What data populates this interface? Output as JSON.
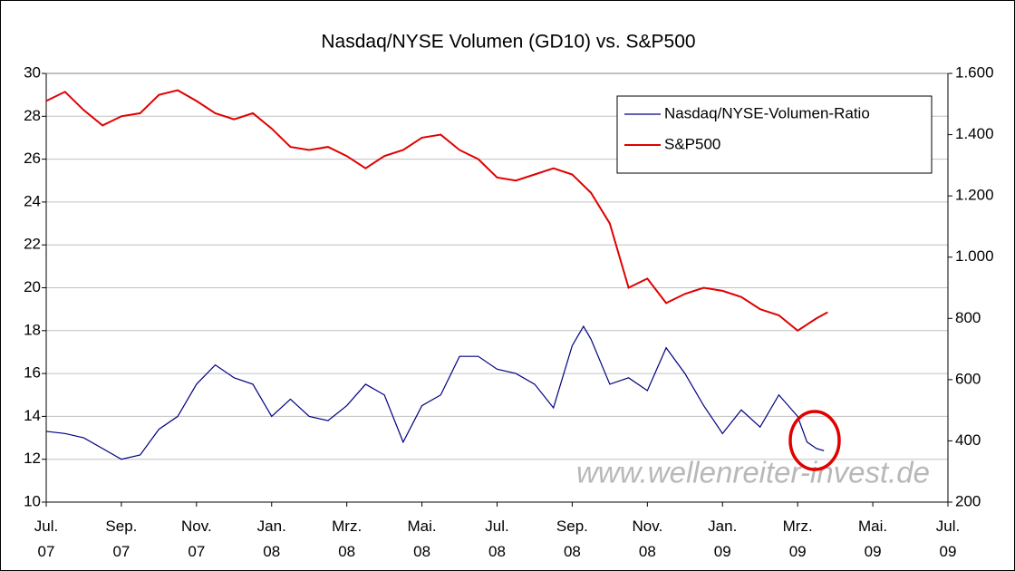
{
  "chart_data": {
    "type": "line",
    "title": "Nasdaq/NYSE Volumen (GD10) vs. S&P500",
    "watermark": "www.wellenreiter-invest.de",
    "xlim": [
      0,
      24
    ],
    "xticks": [
      {
        "value": 0,
        "label": "Jul.\n07"
      },
      {
        "value": 2,
        "label": "Sep.\n07"
      },
      {
        "value": 4,
        "label": "Nov.\n07"
      },
      {
        "value": 6,
        "label": "Jan.\n08"
      },
      {
        "value": 8,
        "label": "Mrz.\n08"
      },
      {
        "value": 10,
        "label": "Mai.\n08"
      },
      {
        "value": 12,
        "label": "Jul.\n08"
      },
      {
        "value": 14,
        "label": "Sep.\n08"
      },
      {
        "value": 16,
        "label": "Nov.\n08"
      },
      {
        "value": 18,
        "label": "Jan.\n09"
      },
      {
        "value": 20,
        "label": "Mrz.\n09"
      },
      {
        "value": 22,
        "label": "Mai.\n09"
      },
      {
        "value": 24,
        "label": "Jul.\n09"
      }
    ],
    "ylim": [
      10,
      30
    ],
    "yticks": [
      10,
      12,
      14,
      16,
      18,
      20,
      22,
      24,
      26,
      28,
      30
    ],
    "y2lim": [
      200,
      1600
    ],
    "y2ticks": [
      200,
      400,
      600,
      800,
      {
        "value": 1000,
        "label": "1.000"
      },
      {
        "value": 1200,
        "label": "1.200"
      },
      {
        "value": 1400,
        "label": "1.400"
      },
      {
        "value": 1600,
        "label": "1.600"
      }
    ],
    "grid": true,
    "legend": "top-right",
    "series": [
      {
        "name": "Nasdaq/NYSE-Volumen-Ratio",
        "color": "#000080",
        "x": [
          0,
          0.5,
          1,
          1.5,
          2,
          2.5,
          3,
          3.5,
          4,
          4.5,
          5,
          5.5,
          6,
          6.5,
          7,
          7.5,
          8,
          8.5,
          9,
          9.5,
          10,
          10.5,
          11,
          11.5,
          12,
          12.5,
          13,
          13.5,
          14,
          14.3,
          14.5,
          15,
          15.5,
          16,
          16.5,
          17,
          17.5,
          18,
          18.5,
          19,
          19.5,
          20,
          20.25,
          20.5,
          20.7
        ],
        "values": [
          13.3,
          13.2,
          13.0,
          12.5,
          12.0,
          12.2,
          13.4,
          14.0,
          15.5,
          16.4,
          15.8,
          15.5,
          14.0,
          14.8,
          14.0,
          13.8,
          14.5,
          15.5,
          15.0,
          12.8,
          14.5,
          15.0,
          16.8,
          16.8,
          16.2,
          16.0,
          15.5,
          14.4,
          17.3,
          18.2,
          17.6,
          15.5,
          15.8,
          15.2,
          17.2,
          16.0,
          14.5,
          13.2,
          14.3,
          13.5,
          15.0,
          14.0,
          12.8,
          12.5,
          12.4
        ]
      },
      {
        "name": "S&P500",
        "color": "#e00000",
        "axis": "y2",
        "x": [
          0,
          0.5,
          1,
          1.5,
          2,
          2.5,
          3,
          3.5,
          4,
          4.5,
          5,
          5.5,
          6,
          6.5,
          7,
          7.5,
          8,
          8.5,
          9,
          9.5,
          10,
          10.5,
          11,
          11.5,
          12,
          12.5,
          13,
          13.5,
          14,
          14.5,
          15,
          15.5,
          16,
          16.5,
          17,
          17.5,
          18,
          18.5,
          19,
          19.5,
          20,
          20.5,
          20.8
        ],
        "values": [
          1510,
          1540,
          1480,
          1430,
          1460,
          1470,
          1530,
          1545,
          1510,
          1470,
          1450,
          1470,
          1420,
          1360,
          1350,
          1360,
          1330,
          1290,
          1330,
          1350,
          1390,
          1400,
          1350,
          1320,
          1260,
          1250,
          1270,
          1290,
          1270,
          1210,
          1110,
          900,
          930,
          850,
          880,
          900,
          890,
          870,
          830,
          810,
          760,
          800,
          820
        ]
      }
    ]
  }
}
